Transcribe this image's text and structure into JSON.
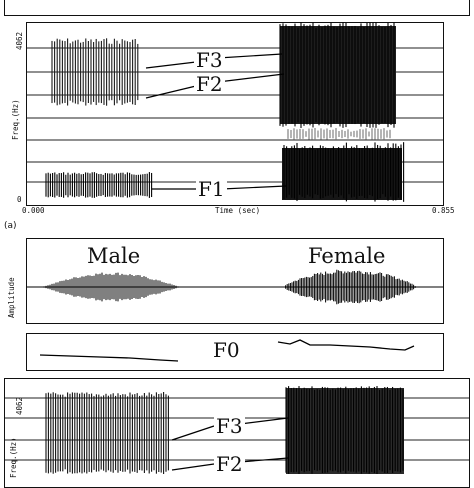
{
  "panel_a": {
    "y_axis_label": "Freq.(Hz)",
    "y_top_tick": "4062",
    "y_bottom_tick": "0",
    "x_axis_label": "Time (sec)",
    "x_start_tick": "0.000",
    "x_end_tick": "0.855",
    "formant_labels": [
      "F3",
      "F2",
      "F1"
    ],
    "caption": "(a)"
  },
  "panel_b": {
    "speaker_labels": [
      "Male",
      "Female"
    ],
    "amplitude_axis_label": "Amplitude",
    "f0_label": "F0",
    "y_axis_label": "Freq.(Hz)",
    "y_top_tick": "4062",
    "formant_labels": [
      "F3",
      "F2"
    ]
  }
}
